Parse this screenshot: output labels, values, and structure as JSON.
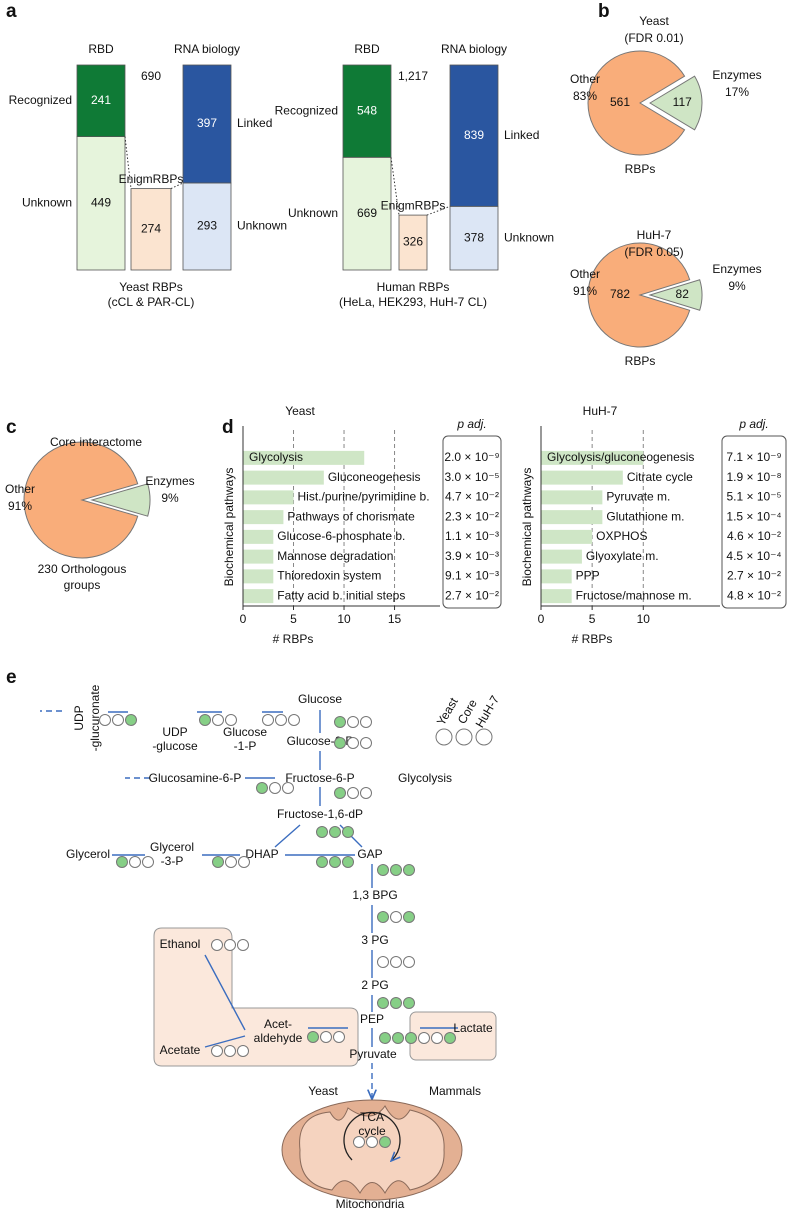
{
  "panel_labels": [
    "a",
    "b",
    "c",
    "d",
    "e"
  ],
  "chart_data": [
    {
      "type": "stacked-bar",
      "column_titles": [
        "RBD",
        "RNA biology"
      ],
      "total": 690,
      "caption": [
        "Yeast RBPs",
        "(cCL & PAR-CL)"
      ],
      "bars": [
        [
          {
            "name": "Recognized",
            "value": 241,
            "color": "#0f7a36"
          },
          {
            "name": "Unknown",
            "value": 449,
            "color": "#e6f4dc"
          }
        ],
        [
          {
            "name": "EnigmRBPs",
            "value": 274,
            "color": "#fbe4d0"
          }
        ],
        [
          {
            "name": "Linked",
            "value": 397,
            "color": "#2a56a0"
          },
          {
            "name": "Unknown",
            "value": 293,
            "color": "#dce6f5"
          }
        ]
      ]
    },
    {
      "type": "stacked-bar",
      "column_titles": [
        "RBD",
        "RNA biology"
      ],
      "total": 1217,
      "total_label": "1,217",
      "caption": [
        "Human RBPs",
        "(HeLa, HEK293, HuH-7 CL)"
      ],
      "bars": [
        [
          {
            "name": "Recognized",
            "value": 548,
            "color": "#0f7a36"
          },
          {
            "name": "Unknown",
            "value": 669,
            "color": "#e6f4dc"
          }
        ],
        [
          {
            "name": "EnigmRBPs",
            "value": 326,
            "color": "#fbe4d0"
          }
        ],
        [
          {
            "name": "Linked",
            "value": 839,
            "color": "#2a56a0"
          },
          {
            "name": "Unknown",
            "value": 378,
            "color": "#dce6f5"
          }
        ]
      ]
    },
    {
      "type": "pie",
      "title": [
        "Yeast",
        "(FDR 0.01)"
      ],
      "categories": [
        "Other",
        "Enzymes"
      ],
      "values": [
        561,
        117
      ],
      "percent_labels": [
        "83%",
        "17%"
      ],
      "colors": [
        "#f9ad7a",
        "#cfe5c5"
      ],
      "footer": [
        "RBPs"
      ]
    },
    {
      "type": "pie",
      "title": [
        "HuH-7",
        "(FDR 0.05)"
      ],
      "categories": [
        "Other",
        "Enzymes"
      ],
      "values": [
        782,
        82
      ],
      "percent_labels": [
        "91%",
        "9%"
      ],
      "colors": [
        "#f9ad7a",
        "#cfe5c5"
      ],
      "footer": [
        "RBPs"
      ]
    },
    {
      "type": "pie",
      "title": [
        "Core interactome"
      ],
      "categories": [
        "Other",
        "Enzymes"
      ],
      "values": [
        91,
        9
      ],
      "value_labels": [
        "91%",
        "9%"
      ],
      "colors": [
        "#f9ad7a",
        "#cfe5c5"
      ],
      "footer": [
        "230 Orthologous",
        "groups"
      ]
    },
    {
      "type": "hbar",
      "title": "Yeast",
      "ylabel": "Biochemical pathways",
      "xlabel": "# RBPs",
      "p_header": "p adj.",
      "categories": [
        "Glycolysis",
        "Gluconeogenesis",
        "Hist./purine/pyrimidine b.",
        "Pathways of chorismate",
        "Glucose-6-phosphate b.",
        "Mannose degradation",
        "Thioredoxin system",
        "Fatty acid b. initial steps"
      ],
      "values": [
        12,
        8,
        5,
        4,
        3,
        3,
        3,
        3
      ],
      "p_adj": [
        "2.0 × 10⁻⁹",
        "3.0 × 10⁻⁵",
        "4.7 × 10⁻²",
        "2.3 × 10⁻²",
        "1.1 × 10⁻³",
        "3.9 × 10⁻³",
        "9.1 × 10⁻³",
        "2.7 × 10⁻²"
      ],
      "color": "#cfe6c6",
      "xlim": [
        0,
        19.5
      ],
      "xticks": [
        0,
        5,
        10,
        15
      ],
      "grid": true
    },
    {
      "type": "hbar",
      "title": "HuH-7",
      "ylabel": "Biochemical pathways",
      "xlabel": "# RBPs",
      "p_header": "p adj.",
      "categories": [
        "Glycolysis/gluconeogenesis",
        "Citrate cycle",
        "Pyruvate m.",
        "Glutathione m.",
        "OXPHOS",
        "Glyoxylate m.",
        "PPP",
        "Fructose/mannose m."
      ],
      "values": [
        10,
        8,
        6,
        6,
        5,
        4,
        3,
        3
      ],
      "p_adj": [
        "7.1 × 10⁻⁹",
        "1.9 × 10⁻⁸",
        "5.1 × 10⁻⁵",
        "1.5 × 10⁻⁴",
        "4.6 × 10⁻²",
        "4.5 × 10⁻⁴",
        "2.7 × 10⁻²",
        "4.8 × 10⁻²"
      ],
      "color": "#cfe6c6",
      "xlim": [
        0,
        17.5
      ],
      "xticks": [
        0,
        5,
        10
      ],
      "grid": true
    }
  ],
  "diagram": {
    "legend": [
      "Yeast",
      "Core",
      "HuH-7"
    ],
    "nodes": [
      {
        "lines": [
          "Glucose"
        ]
      },
      {
        "lines": [
          "Glucose-6-P"
        ]
      },
      {
        "lines": [
          "Glucose",
          "-1-P"
        ]
      },
      {
        "lines": [
          "UDP",
          "-glucose"
        ]
      },
      {
        "lines": [
          "UDP",
          "-glucuronate"
        ]
      },
      {
        "lines": [
          "Fructose-6-P"
        ]
      },
      {
        "lines": [
          "Glucosamine-6-P"
        ]
      },
      {
        "lines": [
          "Glycolysis"
        ]
      },
      {
        "lines": [
          "Fructose-1,6-dP"
        ]
      },
      {
        "lines": [
          "DHAP"
        ]
      },
      {
        "lines": [
          "GAP"
        ]
      },
      {
        "lines": [
          "Glycerol"
        ]
      },
      {
        "lines": [
          "Glycerol",
          "-3-P"
        ]
      },
      {
        "lines": [
          "1,3 BPG"
        ]
      },
      {
        "lines": [
          "3 PG"
        ]
      },
      {
        "lines": [
          "2 PG"
        ]
      },
      {
        "lines": [
          "PEP"
        ]
      },
      {
        "lines": [
          "Pyruvate"
        ]
      },
      {
        "lines": [
          "Ethanol"
        ]
      },
      {
        "lines": [
          "Acetate"
        ]
      },
      {
        "lines": [
          "Acet-",
          "aldehyde"
        ]
      },
      {
        "lines": [
          "Lactate"
        ]
      },
      {
        "lines": [
          "Yeast"
        ]
      },
      {
        "lines": [
          "Mammals"
        ]
      },
      {
        "lines": [
          "TCA",
          "cycle"
        ]
      },
      {
        "lines": [
          "Mitochondria"
        ]
      }
    ],
    "steps": [
      [
        0,
        0,
        1
      ],
      [
        1,
        0,
        0
      ],
      [
        0,
        0,
        0
      ],
      [
        1,
        0,
        0
      ],
      [
        1,
        0,
        0
      ],
      [
        1,
        0,
        0
      ],
      [
        1,
        0,
        0
      ],
      [
        1,
        1,
        1
      ],
      [
        1,
        1,
        1
      ],
      [
        1,
        0,
        0
      ],
      [
        1,
        0,
        0
      ],
      [
        1,
        1,
        1
      ],
      [
        1,
        0,
        1
      ],
      [
        0,
        0,
        0
      ],
      [
        1,
        1,
        1
      ],
      [
        1,
        1,
        1
      ],
      [
        0,
        0,
        0
      ],
      [
        0,
        0,
        0
      ],
      [
        1,
        0,
        0
      ],
      [
        0,
        0,
        1
      ],
      [
        0,
        0,
        1
      ]
    ]
  }
}
